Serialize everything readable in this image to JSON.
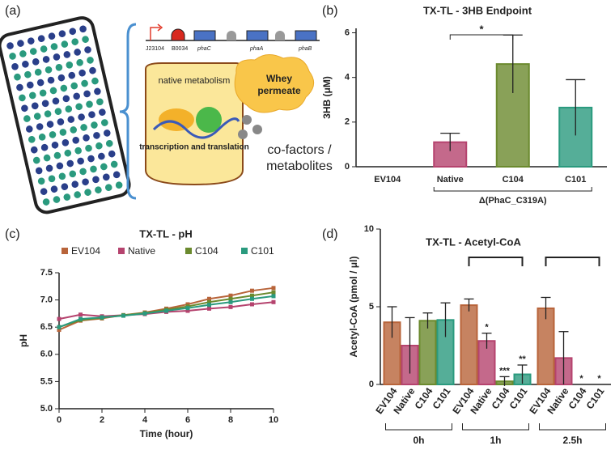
{
  "panels": {
    "a": "(a)",
    "b": "(b)",
    "c": "(c)",
    "d": "(d)"
  },
  "diagram": {
    "promoter": "J23104",
    "rbs": "B0034",
    "genes": [
      "phaC",
      "phaA",
      "phaB"
    ],
    "cell_top": "native metabolism",
    "cell_bottom": "transcription and translation",
    "whey": "Whey permeate",
    "cofactors": "co-factors /",
    "metabolites": "metabolites"
  },
  "chart_data": [
    {
      "type": "bar",
      "title": "TX-TL - 3HB Endpoint",
      "ylabel": "3HB (μM)",
      "categories": [
        "EV104",
        "Native",
        "C104",
        "C101"
      ],
      "values": [
        0,
        1.1,
        4.6,
        2.65
      ],
      "errors": [
        0,
        0.4,
        1.3,
        1.25
      ],
      "colors": [
        "#b8643a",
        "#b5436e",
        "#6b8a2e",
        "#2a9a7e"
      ],
      "ylim": [
        0,
        6.2
      ],
      "yticks": [
        0,
        2,
        4,
        6
      ],
      "group_label": "Δ(PhaC_C319A)",
      "significance": "*"
    },
    {
      "type": "line",
      "title": "TX-TL - pH",
      "xlabel": "Time (hour)",
      "ylabel": "pH",
      "x": [
        0,
        1,
        2,
        3,
        4,
        5,
        6,
        7,
        8,
        9,
        10
      ],
      "xlim": [
        0,
        10
      ],
      "xticks": [
        0,
        2,
        4,
        6,
        8,
        10
      ],
      "ylim": [
        5,
        7.5
      ],
      "yticks": [
        {
          "value": 5,
          "label": "5.0"
        },
        {
          "value": 5.5,
          "label": "5.5"
        },
        {
          "value": 6,
          "label": "6.0"
        },
        {
          "value": 6.5,
          "label": "6.5"
        },
        {
          "value": 7,
          "label": "7.0"
        },
        {
          "value": 7.5,
          "label": "7.5"
        }
      ],
      "legend": "top",
      "series": [
        {
          "name": "EV104",
          "color": "#b8643a",
          "values": [
            6.45,
            6.62,
            6.66,
            6.72,
            6.77,
            6.84,
            6.92,
            7.02,
            7.08,
            7.17,
            7.22
          ]
        },
        {
          "name": "Native",
          "color": "#b5436e",
          "values": [
            6.65,
            6.73,
            6.7,
            6.72,
            6.74,
            6.78,
            6.8,
            6.84,
            6.87,
            6.92,
            6.96
          ]
        },
        {
          "name": "C104",
          "color": "#6b8a2e",
          "values": [
            6.5,
            6.63,
            6.67,
            6.72,
            6.76,
            6.82,
            6.88,
            6.96,
            7.02,
            7.08,
            7.14
          ]
        },
        {
          "name": "C101",
          "color": "#2a9a7e",
          "values": [
            6.5,
            6.65,
            6.68,
            6.71,
            6.75,
            6.8,
            6.85,
            6.91,
            6.96,
            7.02,
            7.07
          ]
        }
      ]
    },
    {
      "type": "grouped_bar",
      "title": "TX-TL - Acetyl-CoA",
      "ylabel": "Acetyl-CoA (pmol / μl)",
      "categories": [
        "0h",
        "1h",
        "2.5h"
      ],
      "ylim": [
        0,
        10
      ],
      "yticks": [
        0,
        5,
        10
      ],
      "series": [
        {
          "name": "EV104",
          "color": "#b8643a",
          "values": [
            4.0,
            5.1,
            4.9
          ],
          "errors": [
            1.0,
            0.4,
            0.7
          ],
          "significance": [
            null,
            null,
            null
          ]
        },
        {
          "name": "Native",
          "color": "#b5436e",
          "values": [
            2.5,
            2.8,
            1.7
          ],
          "errors": [
            1.8,
            0.5,
            1.7
          ],
          "significance": [
            null,
            "*",
            null
          ]
        },
        {
          "name": "C104",
          "color": "#6b8a2e",
          "values": [
            4.1,
            0.2,
            0
          ],
          "errors": [
            0.5,
            0.3,
            0
          ],
          "significance": [
            null,
            "***",
            "*"
          ]
        },
        {
          "name": "C101",
          "color": "#2a9a7e",
          "values": [
            4.15,
            0.65,
            0
          ],
          "errors": [
            1.1,
            0.6,
            0
          ],
          "significance": [
            null,
            "**",
            "*"
          ]
        }
      ]
    }
  ]
}
